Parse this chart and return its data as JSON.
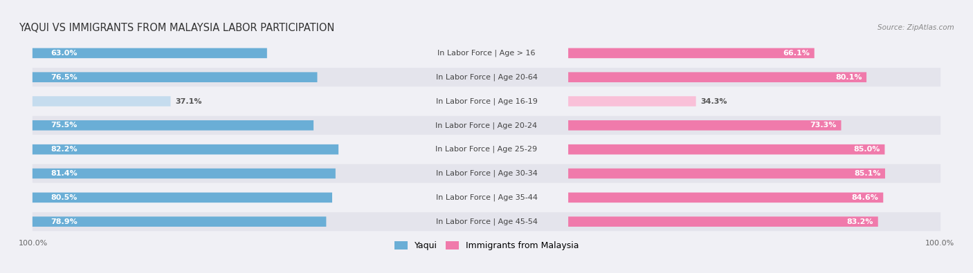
{
  "title": "YAQUI VS IMMIGRANTS FROM MALAYSIA LABOR PARTICIPATION",
  "source": "Source: ZipAtlas.com",
  "categories": [
    "In Labor Force | Age > 16",
    "In Labor Force | Age 20-64",
    "In Labor Force | Age 16-19",
    "In Labor Force | Age 20-24",
    "In Labor Force | Age 25-29",
    "In Labor Force | Age 30-34",
    "In Labor Force | Age 35-44",
    "In Labor Force | Age 45-54"
  ],
  "yaqui_values": [
    63.0,
    76.5,
    37.1,
    75.5,
    82.2,
    81.4,
    80.5,
    78.9
  ],
  "malaysia_values": [
    66.1,
    80.1,
    34.3,
    73.3,
    85.0,
    85.1,
    84.6,
    83.2
  ],
  "yaqui_color": "#6aaed6",
  "malaysia_color": "#f07aab",
  "yaqui_light_color": "#c5dcee",
  "malaysia_light_color": "#f9c0d8",
  "background_color": "#f0f0f5",
  "row_bg_even": "#f5f5f8",
  "row_bg_odd": "#e8e8ef",
  "pill_bg_even": "#f0f0f5",
  "pill_bg_odd": "#e4e4ec",
  "label_fontsize": 8.0,
  "title_fontsize": 10.5,
  "source_fontsize": 7.5,
  "legend_fontsize": 9.0,
  "legend_yaqui": "Yaqui",
  "legend_malaysia": "Immigrants from Malaysia"
}
